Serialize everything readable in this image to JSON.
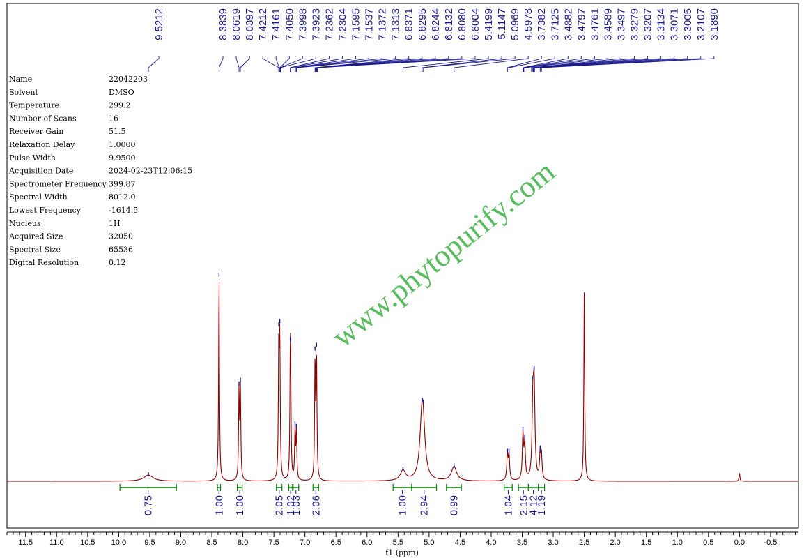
{
  "chart_data": {
    "type": "line",
    "xlabel": "f1 (ppm)",
    "xlim": [
      11.8,
      -0.95
    ],
    "x_reversed": true,
    "x_ticks": [
      "11.5",
      "11.0",
      "10.5",
      "10.0",
      "9.5",
      "9.0",
      "8.5",
      "8.0",
      "7.5",
      "7.0",
      "6.5",
      "6.0",
      "5.5",
      "5.0",
      "4.5",
      "4.0",
      "3.5",
      "3.0",
      "2.5",
      "2.0",
      "1.5",
      "1.0",
      "0.5",
      "0.0",
      "-0.5"
    ],
    "parameters": [
      {
        "name": "Name",
        "value": "22042203"
      },
      {
        "name": "Solvent",
        "value": "DMSO"
      },
      {
        "name": "Temperature",
        "value": "299.2"
      },
      {
        "name": "Number of Scans",
        "value": "16"
      },
      {
        "name": "Receiver Gain",
        "value": "51.5"
      },
      {
        "name": "Relaxation Delay",
        "value": "1.0000"
      },
      {
        "name": "Pulse Width",
        "value": "9.9500"
      },
      {
        "name": "Acquisition Date",
        "value": "2024-02-23T12:06:15"
      },
      {
        "name": "Spectrometer Frequency",
        "value": "399.87"
      },
      {
        "name": "Spectral Width",
        "value": "8012.0"
      },
      {
        "name": "Lowest Frequency",
        "value": "-1614.5"
      },
      {
        "name": "Nucleus",
        "value": "1H"
      },
      {
        "name": "Acquired Size",
        "value": "32050"
      },
      {
        "name": "Spectral Size",
        "value": "65536"
      },
      {
        "name": "Digital Resolution",
        "value": "0.12"
      }
    ],
    "peak_labels": [
      "9.5212",
      "8.3839",
      "8.0619",
      "8.0397",
      "7.4212",
      "7.4161",
      "7.4050",
      "7.3998",
      "7.3923",
      "7.2362",
      "7.2304",
      "7.1595",
      "7.1537",
      "7.1372",
      "7.1313",
      "6.8371",
      "6.8295",
      "6.8244",
      "6.8132",
      "6.8080",
      "6.8004",
      "5.4199",
      "5.1147",
      "5.0969",
      "4.5978",
      "3.7382",
      "3.7125",
      "3.4882",
      "3.4797",
      "3.4761",
      "3.4589",
      "3.3497",
      "3.3279",
      "3.3207",
      "3.3134",
      "3.3071",
      "3.3005",
      "3.2107",
      "3.1890"
    ],
    "peaks": [
      {
        "ppm": 9.5212,
        "height": 0.03,
        "width": 0.09
      },
      {
        "ppm": 8.3839,
        "height": 1.0,
        "width": 0.008
      },
      {
        "ppm": 8.0619,
        "height": 0.42,
        "width": 0.008
      },
      {
        "ppm": 8.0397,
        "height": 0.44,
        "width": 0.008
      },
      {
        "ppm": 7.4212,
        "height": 0.63,
        "width": 0.008
      },
      {
        "ppm": 7.405,
        "height": 0.65,
        "width": 0.008
      },
      {
        "ppm": 7.2362,
        "height": 0.42,
        "width": 0.008
      },
      {
        "ppm": 7.2304,
        "height": 0.4,
        "width": 0.008
      },
      {
        "ppm": 7.1595,
        "height": 0.24,
        "width": 0.008
      },
      {
        "ppm": 7.1372,
        "height": 0.23,
        "width": 0.008
      },
      {
        "ppm": 6.8371,
        "height": 0.58,
        "width": 0.008
      },
      {
        "ppm": 6.8132,
        "height": 0.6,
        "width": 0.008
      },
      {
        "ppm": 5.4199,
        "height": 0.05,
        "width": 0.05
      },
      {
        "ppm": 5.1147,
        "height": 0.24,
        "width": 0.04
      },
      {
        "ppm": 5.0969,
        "height": 0.18,
        "width": 0.04
      },
      {
        "ppm": 4.5978,
        "height": 0.07,
        "width": 0.05
      },
      {
        "ppm": 3.7382,
        "height": 0.12,
        "width": 0.012
      },
      {
        "ppm": 3.7125,
        "height": 0.12,
        "width": 0.012
      },
      {
        "ppm": 3.4882,
        "height": 0.22,
        "width": 0.012
      },
      {
        "ppm": 3.4589,
        "height": 0.17,
        "width": 0.012
      },
      {
        "ppm": 3.3279,
        "height": 0.35,
        "width": 0.015
      },
      {
        "ppm": 3.3071,
        "height": 0.42,
        "width": 0.015
      },
      {
        "ppm": 3.2107,
        "height": 0.12,
        "width": 0.012
      },
      {
        "ppm": 3.189,
        "height": 0.1,
        "width": 0.012
      },
      {
        "ppm": 2.5,
        "height": 0.94,
        "width": 0.008
      },
      {
        "ppm": 0.0,
        "height": 0.04,
        "width": 0.008
      }
    ],
    "integrals": [
      {
        "from": 9.98,
        "to": 9.07,
        "value": "0.75"
      },
      {
        "from": 8.41,
        "to": 8.36,
        "value": "1.00"
      },
      {
        "from": 8.09,
        "to": 8.01,
        "value": "1.00"
      },
      {
        "from": 7.46,
        "to": 7.37,
        "value": "2.05"
      },
      {
        "from": 7.26,
        "to": 7.2,
        "value": "1.02"
      },
      {
        "from": 7.19,
        "to": 7.1,
        "value": "1.03"
      },
      {
        "from": 6.87,
        "to": 6.78,
        "value": "2.06"
      },
      {
        "from": 5.58,
        "to": 5.28,
        "value": "1.00"
      },
      {
        "from": 5.28,
        "to": 4.88,
        "value": "2.94"
      },
      {
        "from": 4.72,
        "to": 4.48,
        "value": "0.99"
      },
      {
        "from": 3.79,
        "to": 3.66,
        "value": "1.04"
      },
      {
        "from": 3.56,
        "to": 3.4,
        "value": "2.15"
      },
      {
        "from": 3.4,
        "to": 3.24,
        "value": "4.12"
      },
      {
        "from": 3.24,
        "to": 3.14,
        "value": "1.19"
      }
    ]
  },
  "watermark": "www.phytopurify.com",
  "colors": {
    "spectrum": "#8b0000",
    "labels": "#1a1a8c",
    "integrals": "#008000",
    "watermark": "#3cb043",
    "frame": "#000000"
  }
}
